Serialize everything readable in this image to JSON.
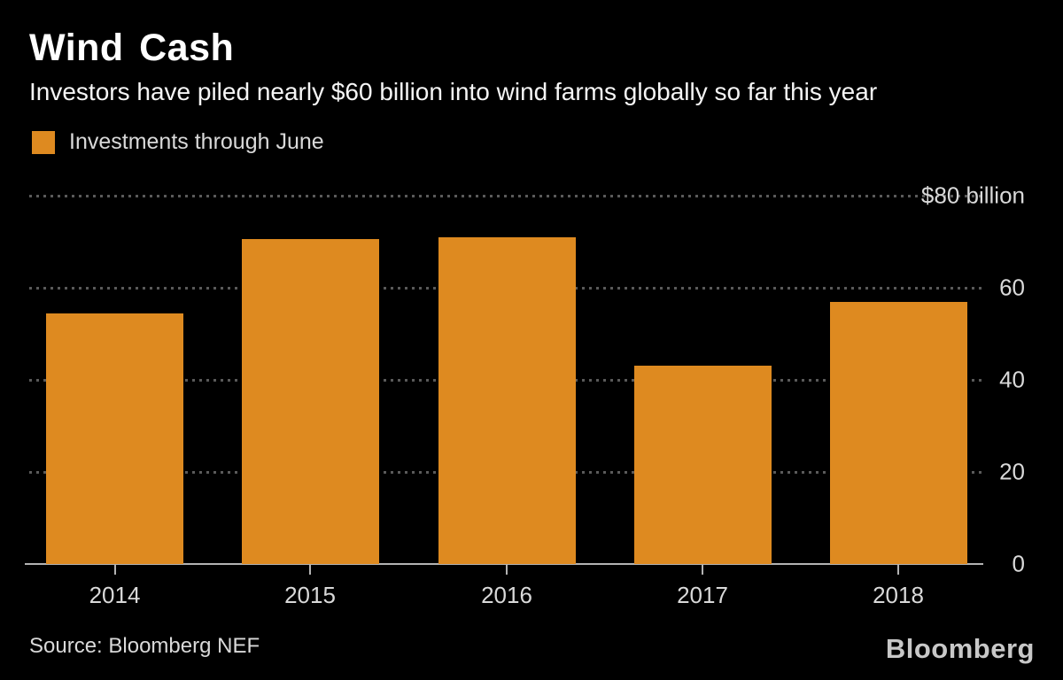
{
  "title": "Wind Cash",
  "subtitle": "Investors have piled nearly $60 billion into wind farms globally so far this year",
  "legend": {
    "label": "Investments through June",
    "swatch_color": "#de8a20"
  },
  "source": "Source: Bloomberg NEF",
  "brand": "Bloomberg",
  "colors": {
    "background": "#000000",
    "bar": "#de8a20",
    "axis": "#b3b3b3",
    "grid_dot": "#5a5a5a",
    "label": "#d9d9d9",
    "title": "#ffffff"
  },
  "chart_data": {
    "type": "bar",
    "title": "Wind Cash",
    "subtitle": "Investors have piled nearly $60 billion into wind farms globally so far this year",
    "series_name": "Investments through June",
    "categories": [
      "2014",
      "2015",
      "2016",
      "2017",
      "2018"
    ],
    "values": [
      54.5,
      70.5,
      71,
      43,
      57
    ],
    "unit": "$ billion",
    "xlabel": "",
    "ylabel": "$ billion",
    "ylim": [
      0,
      80
    ],
    "yticks": [
      {
        "value": 80,
        "label": "$80 billion"
      },
      {
        "value": 60,
        "label": "60"
      },
      {
        "value": 40,
        "label": "40"
      },
      {
        "value": 20,
        "label": "20"
      },
      {
        "value": 0,
        "label": "0"
      }
    ],
    "grid": "horizontal-dotted",
    "legend_position": "top-left",
    "source": "Bloomberg NEF"
  }
}
